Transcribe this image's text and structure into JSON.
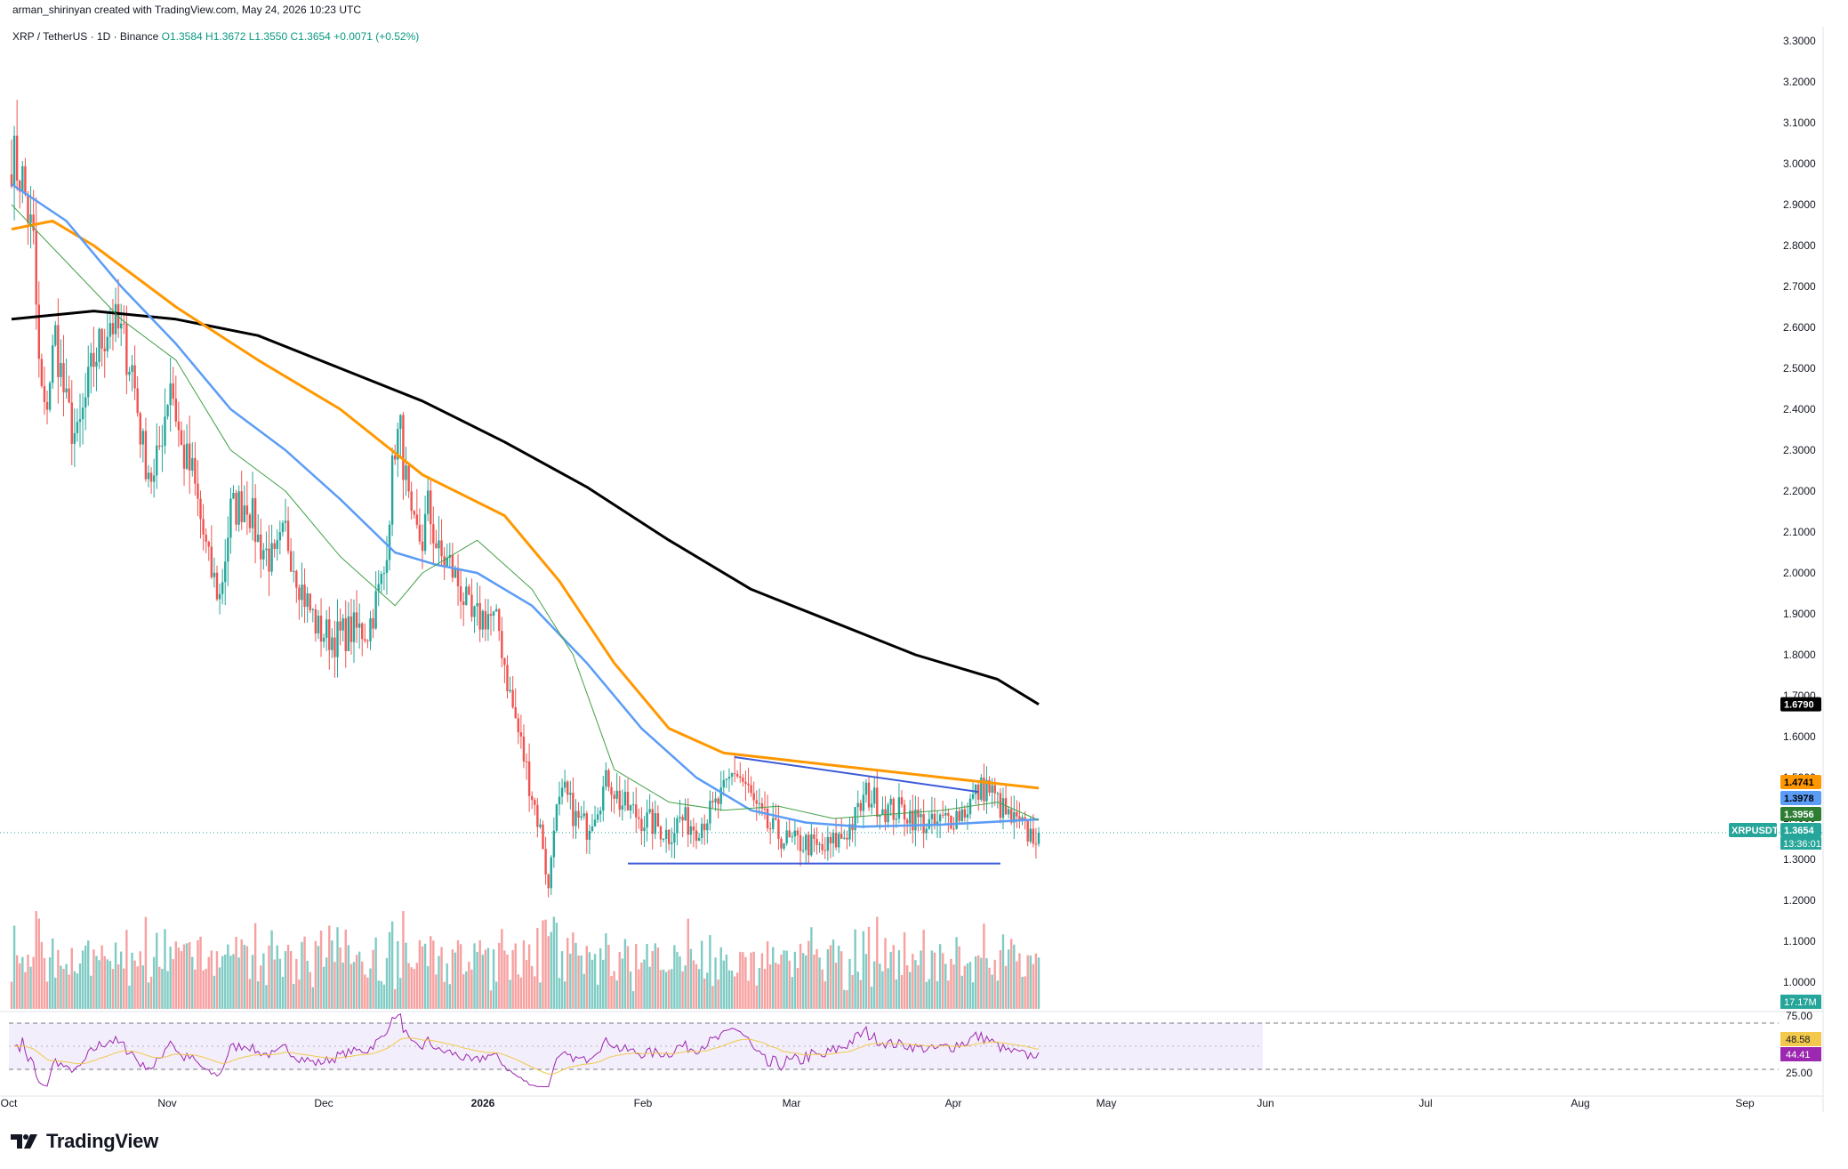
{
  "header": {
    "attribution": "arman_shirinyan created with TradingView.com, May 24, 2026 10:23 UTC"
  },
  "legend": {
    "symbol": "XRP / TetherUS · 1D · Binance",
    "open": "O1.3584",
    "high": "H1.3672",
    "low": "L1.3550",
    "close": "C1.3654",
    "change": "+0.0071 (+0.52%)"
  },
  "brand": {
    "name": "TradingView"
  },
  "colors": {
    "up": "#26a69a",
    "down": "#ef5350",
    "vol_up": "#80cbc4",
    "vol_down": "#f7a0a0",
    "ma200": "#000000",
    "ma100": "#ff9800",
    "ma50": "#5b9cf6",
    "ma20": "#43a047",
    "trendline": "#3c5bd8",
    "rsi": "#9c27b0",
    "rsi_ma": "#f2c94c"
  },
  "chart_data": {
    "type": "candlestick",
    "symbol": "XRPUSDT",
    "price_axis_ticks": [
      "3.3000",
      "3.2000",
      "3.1000",
      "3.0000",
      "2.9000",
      "2.8000",
      "2.7000",
      "2.6000",
      "2.5000",
      "2.4000",
      "2.3000",
      "2.2000",
      "2.1000",
      "2.0000",
      "1.9000",
      "1.8000",
      "1.7000",
      "1.6000",
      "1.5000",
      "1.4000",
      "1.3000",
      "1.2000",
      "1.1000",
      "1.0000"
    ],
    "time_axis_ticks": [
      "Oct",
      "Nov",
      "Dec",
      "2026",
      "Feb",
      "Mar",
      "Apr",
      "May",
      "Jun",
      "Jul",
      "Aug",
      "Sep"
    ],
    "price_range": [
      0.92,
      3.36
    ],
    "price_badges": [
      {
        "label": "1.6790",
        "value": 1.679,
        "bg": "#000000",
        "fg": "#ffffff"
      },
      {
        "label": "1.4741",
        "value": 1.4741,
        "bg": "#ff9800",
        "fg": "#000000"
      },
      {
        "label": "1.3978",
        "value": 1.3978,
        "bg": "#5b9cf6",
        "fg": "#000000"
      },
      {
        "label": "1.3956",
        "value": 1.3956,
        "bg": "#2e7d32",
        "fg": "#ffffff"
      },
      {
        "label": "1.3654",
        "value": 1.3654,
        "bg": "#26a69a",
        "fg": "#ffffff"
      }
    ],
    "symbol_tag": "XRPUSDT",
    "countdown": "13:36:01",
    "volume_badge": "17.17M",
    "last_price": 1.3654,
    "moving_averages": [
      {
        "period": 200,
        "color": "#000000",
        "points": [
          [
            0,
            2.62
          ],
          [
            30,
            2.64
          ],
          [
            60,
            2.62
          ],
          [
            90,
            2.58
          ],
          [
            120,
            2.5
          ],
          [
            150,
            2.42
          ],
          [
            180,
            2.32
          ],
          [
            210,
            2.21
          ],
          [
            240,
            2.08
          ],
          [
            270,
            1.96
          ],
          [
            300,
            1.88
          ],
          [
            330,
            1.8
          ],
          [
            360,
            1.74
          ],
          [
            375,
            1.679
          ]
        ]
      },
      {
        "period": 100,
        "color": "#ff9800",
        "points": [
          [
            0,
            2.84
          ],
          [
            15,
            2.86
          ],
          [
            30,
            2.8
          ],
          [
            60,
            2.65
          ],
          [
            90,
            2.52
          ],
          [
            120,
            2.4
          ],
          [
            150,
            2.24
          ],
          [
            180,
            2.14
          ],
          [
            200,
            1.98
          ],
          [
            220,
            1.78
          ],
          [
            240,
            1.62
          ],
          [
            260,
            1.56
          ],
          [
            300,
            1.53
          ],
          [
            340,
            1.5
          ],
          [
            375,
            1.4741
          ]
        ]
      },
      {
        "period": 50,
        "color": "#5b9cf6",
        "points": [
          [
            0,
            2.95
          ],
          [
            20,
            2.86
          ],
          [
            40,
            2.7
          ],
          [
            60,
            2.56
          ],
          [
            80,
            2.4
          ],
          [
            100,
            2.3
          ],
          [
            120,
            2.18
          ],
          [
            140,
            2.05
          ],
          [
            155,
            2.02
          ],
          [
            170,
            2.0
          ],
          [
            190,
            1.92
          ],
          [
            210,
            1.78
          ],
          [
            230,
            1.62
          ],
          [
            250,
            1.5
          ],
          [
            270,
            1.42
          ],
          [
            290,
            1.39
          ],
          [
            310,
            1.38
          ],
          [
            340,
            1.385
          ],
          [
            375,
            1.3978
          ]
        ]
      },
      {
        "period": 20,
        "color": "#43a047",
        "points": [
          [
            0,
            2.9
          ],
          [
            20,
            2.76
          ],
          [
            40,
            2.62
          ],
          [
            60,
            2.52
          ],
          [
            80,
            2.3
          ],
          [
            100,
            2.2
          ],
          [
            120,
            2.04
          ],
          [
            140,
            1.92
          ],
          [
            150,
            2.0
          ],
          [
            170,
            2.08
          ],
          [
            190,
            1.96
          ],
          [
            205,
            1.8
          ],
          [
            220,
            1.52
          ],
          [
            240,
            1.44
          ],
          [
            260,
            1.42
          ],
          [
            280,
            1.43
          ],
          [
            300,
            1.4
          ],
          [
            320,
            1.41
          ],
          [
            340,
            1.42
          ],
          [
            360,
            1.44
          ],
          [
            375,
            1.3956
          ]
        ]
      }
    ],
    "trendlines": [
      {
        "from": [
          264,
          1.55
        ],
        "to": [
          353,
          1.465
        ]
      },
      {
        "from": [
          225,
          1.29
        ],
        "to": [
          361,
          1.29
        ]
      }
    ],
    "rsi": {
      "levels": [
        "75.00",
        "25.00"
      ],
      "rsi_value": "44.41",
      "rsi_ma_value": "48.58",
      "range": [
        0,
        100
      ],
      "upper": 70,
      "lower": 30
    }
  }
}
